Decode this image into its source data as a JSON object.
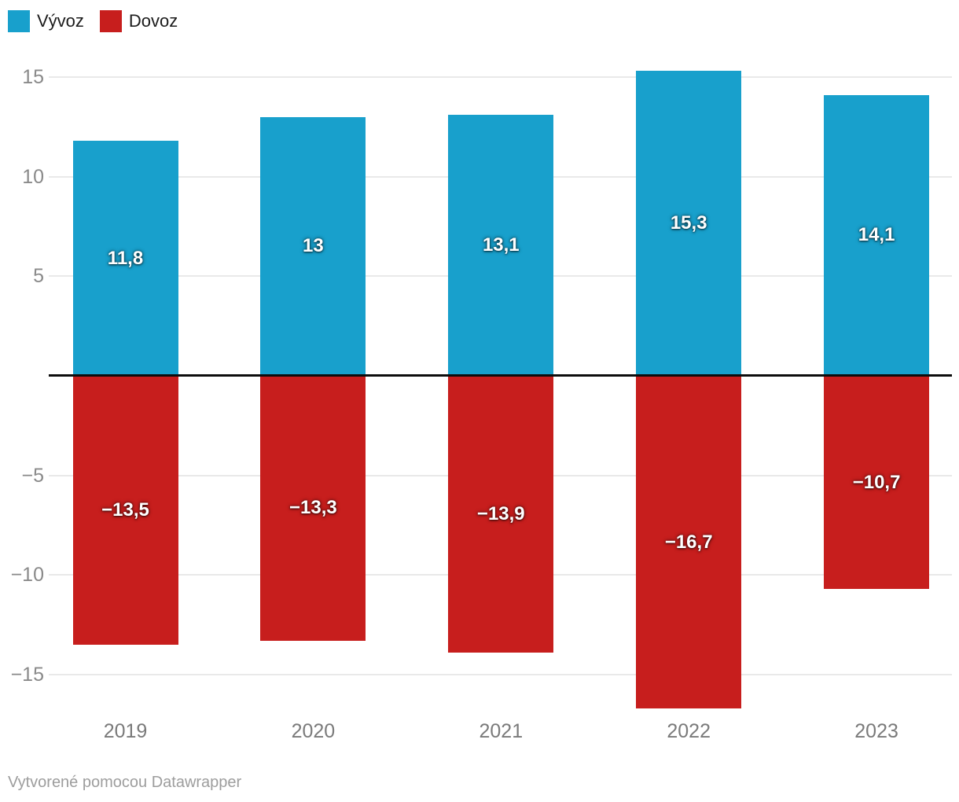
{
  "legend": {
    "items": [
      {
        "label": "Vývoz",
        "color": "#18a0cc"
      },
      {
        "label": "Dovoz",
        "color": "#c71e1d"
      }
    ]
  },
  "footer": {
    "text": "Vytvorené pomocou Datawrapper"
  },
  "chart_data": {
    "type": "bar",
    "title": "",
    "xlabel": "",
    "ylabel": "",
    "categories": [
      "2019",
      "2020",
      "2021",
      "2022",
      "2023"
    ],
    "series": [
      {
        "name": "Vývoz",
        "color": "#18a0cc",
        "values": [
          11.8,
          13,
          13.1,
          15.3,
          14.1
        ],
        "labels": [
          "11,8",
          "13",
          "13,1",
          "15,3",
          "14,1"
        ]
      },
      {
        "name": "Dovoz",
        "color": "#c71e1d",
        "values": [
          -13.5,
          -13.3,
          -13.9,
          -16.7,
          -10.7
        ],
        "labels": [
          "−13,5",
          "−13,3",
          "−13,9",
          "−16,7",
          "−10,7"
        ]
      }
    ],
    "y_axis": {
      "ticks": [
        15,
        10,
        5,
        -5,
        -10,
        -15
      ],
      "tick_labels": [
        "15",
        "10",
        "5",
        "−5",
        "−10",
        "−15"
      ],
      "range": [
        -16.7,
        15.3
      ]
    },
    "ylim": [
      -17.5,
      15.5
    ],
    "grid": true,
    "zero_line": true,
    "legend_position": "top-left",
    "value_labels_position": "center-of-bar"
  }
}
